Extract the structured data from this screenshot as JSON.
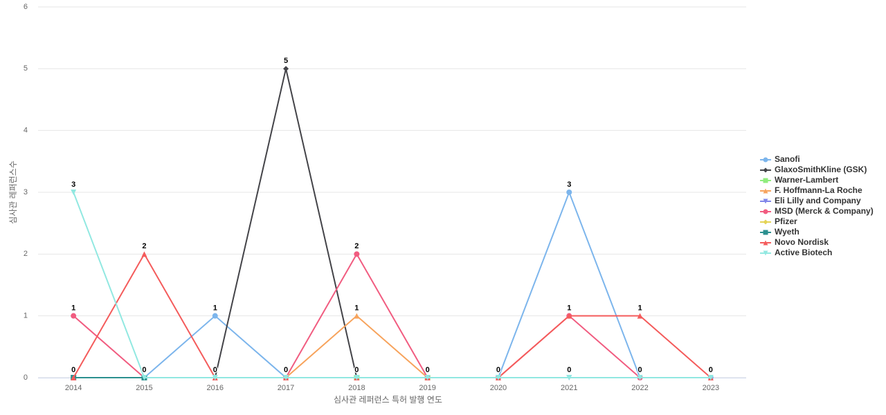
{
  "chart_data": {
    "type": "line",
    "x_label": "심사관 레퍼런스 특허 발행 연도",
    "y_label": "심사관 레퍼런스수",
    "categories": [
      "2014",
      "2015",
      "2016",
      "2017",
      "2018",
      "2019",
      "2020",
      "2021",
      "2022",
      "2023"
    ],
    "ylim": [
      0,
      6
    ],
    "yticks": [
      0,
      1,
      2,
      3,
      4,
      5,
      6
    ],
    "grid": true,
    "legend": "right",
    "data_labels": true,
    "series": [
      {
        "name": "Sanofi",
        "color": "#7cb5ec",
        "marker": "circle",
        "values": [
          null,
          0,
          1,
          0,
          0,
          0,
          0,
          3,
          0,
          0
        ]
      },
      {
        "name": "GlaxoSmithKline (GSK)",
        "color": "#434348",
        "marker": "diamond",
        "values": [
          null,
          null,
          0,
          5,
          0,
          null,
          null,
          null,
          null,
          null
        ]
      },
      {
        "name": "Warner-Lambert",
        "color": "#90ed7d",
        "marker": "square",
        "values": [
          null,
          null,
          null,
          null,
          0,
          0,
          null,
          null,
          null,
          null
        ]
      },
      {
        "name": "F. Hoffmann-La Roche",
        "color": "#f7a35c",
        "marker": "triangle",
        "values": [
          null,
          null,
          null,
          0,
          1,
          0,
          null,
          null,
          null,
          null
        ]
      },
      {
        "name": "Eli Lilly and Company",
        "color": "#8085e9",
        "marker": "triangle-down",
        "values": [
          null,
          null,
          null,
          null,
          null,
          null,
          0,
          0,
          null,
          null
        ]
      },
      {
        "name": "MSD (Merck & Company)",
        "color": "#f15c80",
        "marker": "circle",
        "values": [
          1,
          0,
          null,
          0,
          2,
          0,
          0,
          1,
          0,
          null
        ]
      },
      {
        "name": "Pfizer",
        "color": "#e4d354",
        "marker": "diamond",
        "values": [
          null,
          null,
          0,
          0,
          null,
          null,
          null,
          null,
          null,
          null
        ]
      },
      {
        "name": "Wyeth",
        "color": "#2b908f",
        "marker": "square",
        "values": [
          0,
          0,
          null,
          null,
          null,
          null,
          null,
          null,
          null,
          null
        ]
      },
      {
        "name": "Novo Nordisk",
        "color": "#f45b5b",
        "marker": "triangle",
        "values": [
          0,
          2,
          0,
          0,
          0,
          0,
          0,
          1,
          1,
          0
        ]
      },
      {
        "name": "Active Biotech",
        "color": "#91e8e1",
        "marker": "triangle-down",
        "values": [
          3,
          0,
          0,
          0,
          0,
          0,
          0,
          0,
          0,
          0
        ]
      }
    ]
  }
}
